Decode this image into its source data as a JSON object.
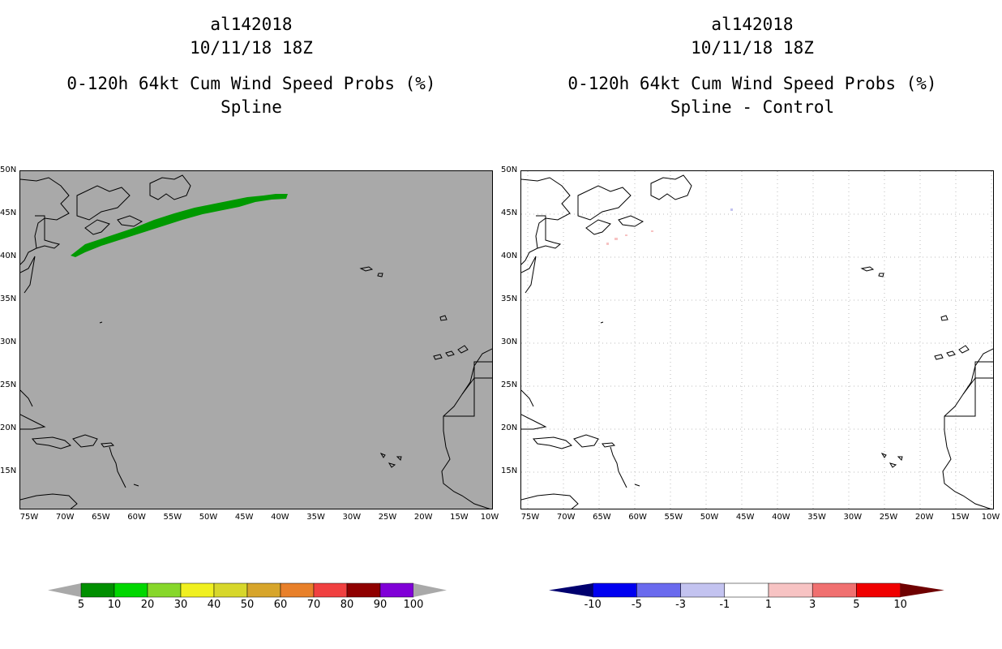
{
  "left_panel": {
    "storm_id": "al142018",
    "datetime": "10/11/18 18Z",
    "product": "0-120h 64kt Cum Wind Speed Probs (%)",
    "subtitle": "Spline"
  },
  "right_panel": {
    "storm_id": "al142018",
    "datetime": "10/11/18 18Z",
    "product": "0-120h 64kt Cum Wind Speed Probs (%)",
    "subtitle": "Spline - Control"
  },
  "map": {
    "lat_labels": [
      "50N",
      "45N",
      "40N",
      "35N",
      "30N",
      "25N",
      "20N",
      "15N"
    ],
    "lon_labels": [
      "75W",
      "70W",
      "65W",
      "60W",
      "55W",
      "50W",
      "45W",
      "40W",
      "35W",
      "30W",
      "25W",
      "20W",
      "15W",
      "10W"
    ],
    "lon_extent_deg": [
      -76,
      -10
    ],
    "lat_extent_deg": [
      10.5,
      50
    ]
  },
  "left_colorbar": {
    "labels": [
      "5",
      "10",
      "20",
      "30",
      "40",
      "50",
      "60",
      "70",
      "80",
      "90",
      "100"
    ],
    "colors": [
      "#a9a9a9",
      "#008f00",
      "#00d700",
      "#87d72b",
      "#f0f020",
      "#d7d72b",
      "#d7a52b",
      "#e8802a",
      "#f04040",
      "#8f0000",
      "#8000d7",
      "#a9a9a9"
    ]
  },
  "right_colorbar": {
    "labels": [
      "-10",
      "-5",
      "-3",
      "-1",
      "1",
      "3",
      "5",
      "10"
    ],
    "colors": [
      "#00006f",
      "#0000f0",
      "#6a6aee",
      "#c3c3f0",
      "#ffffff",
      "#f7c3c3",
      "#f07070",
      "#f00000",
      "#6f0000"
    ]
  },
  "colors": {
    "land_bg": "#a9a9a9",
    "prob_swath": "#009900",
    "grid": "#bbbbbb"
  }
}
